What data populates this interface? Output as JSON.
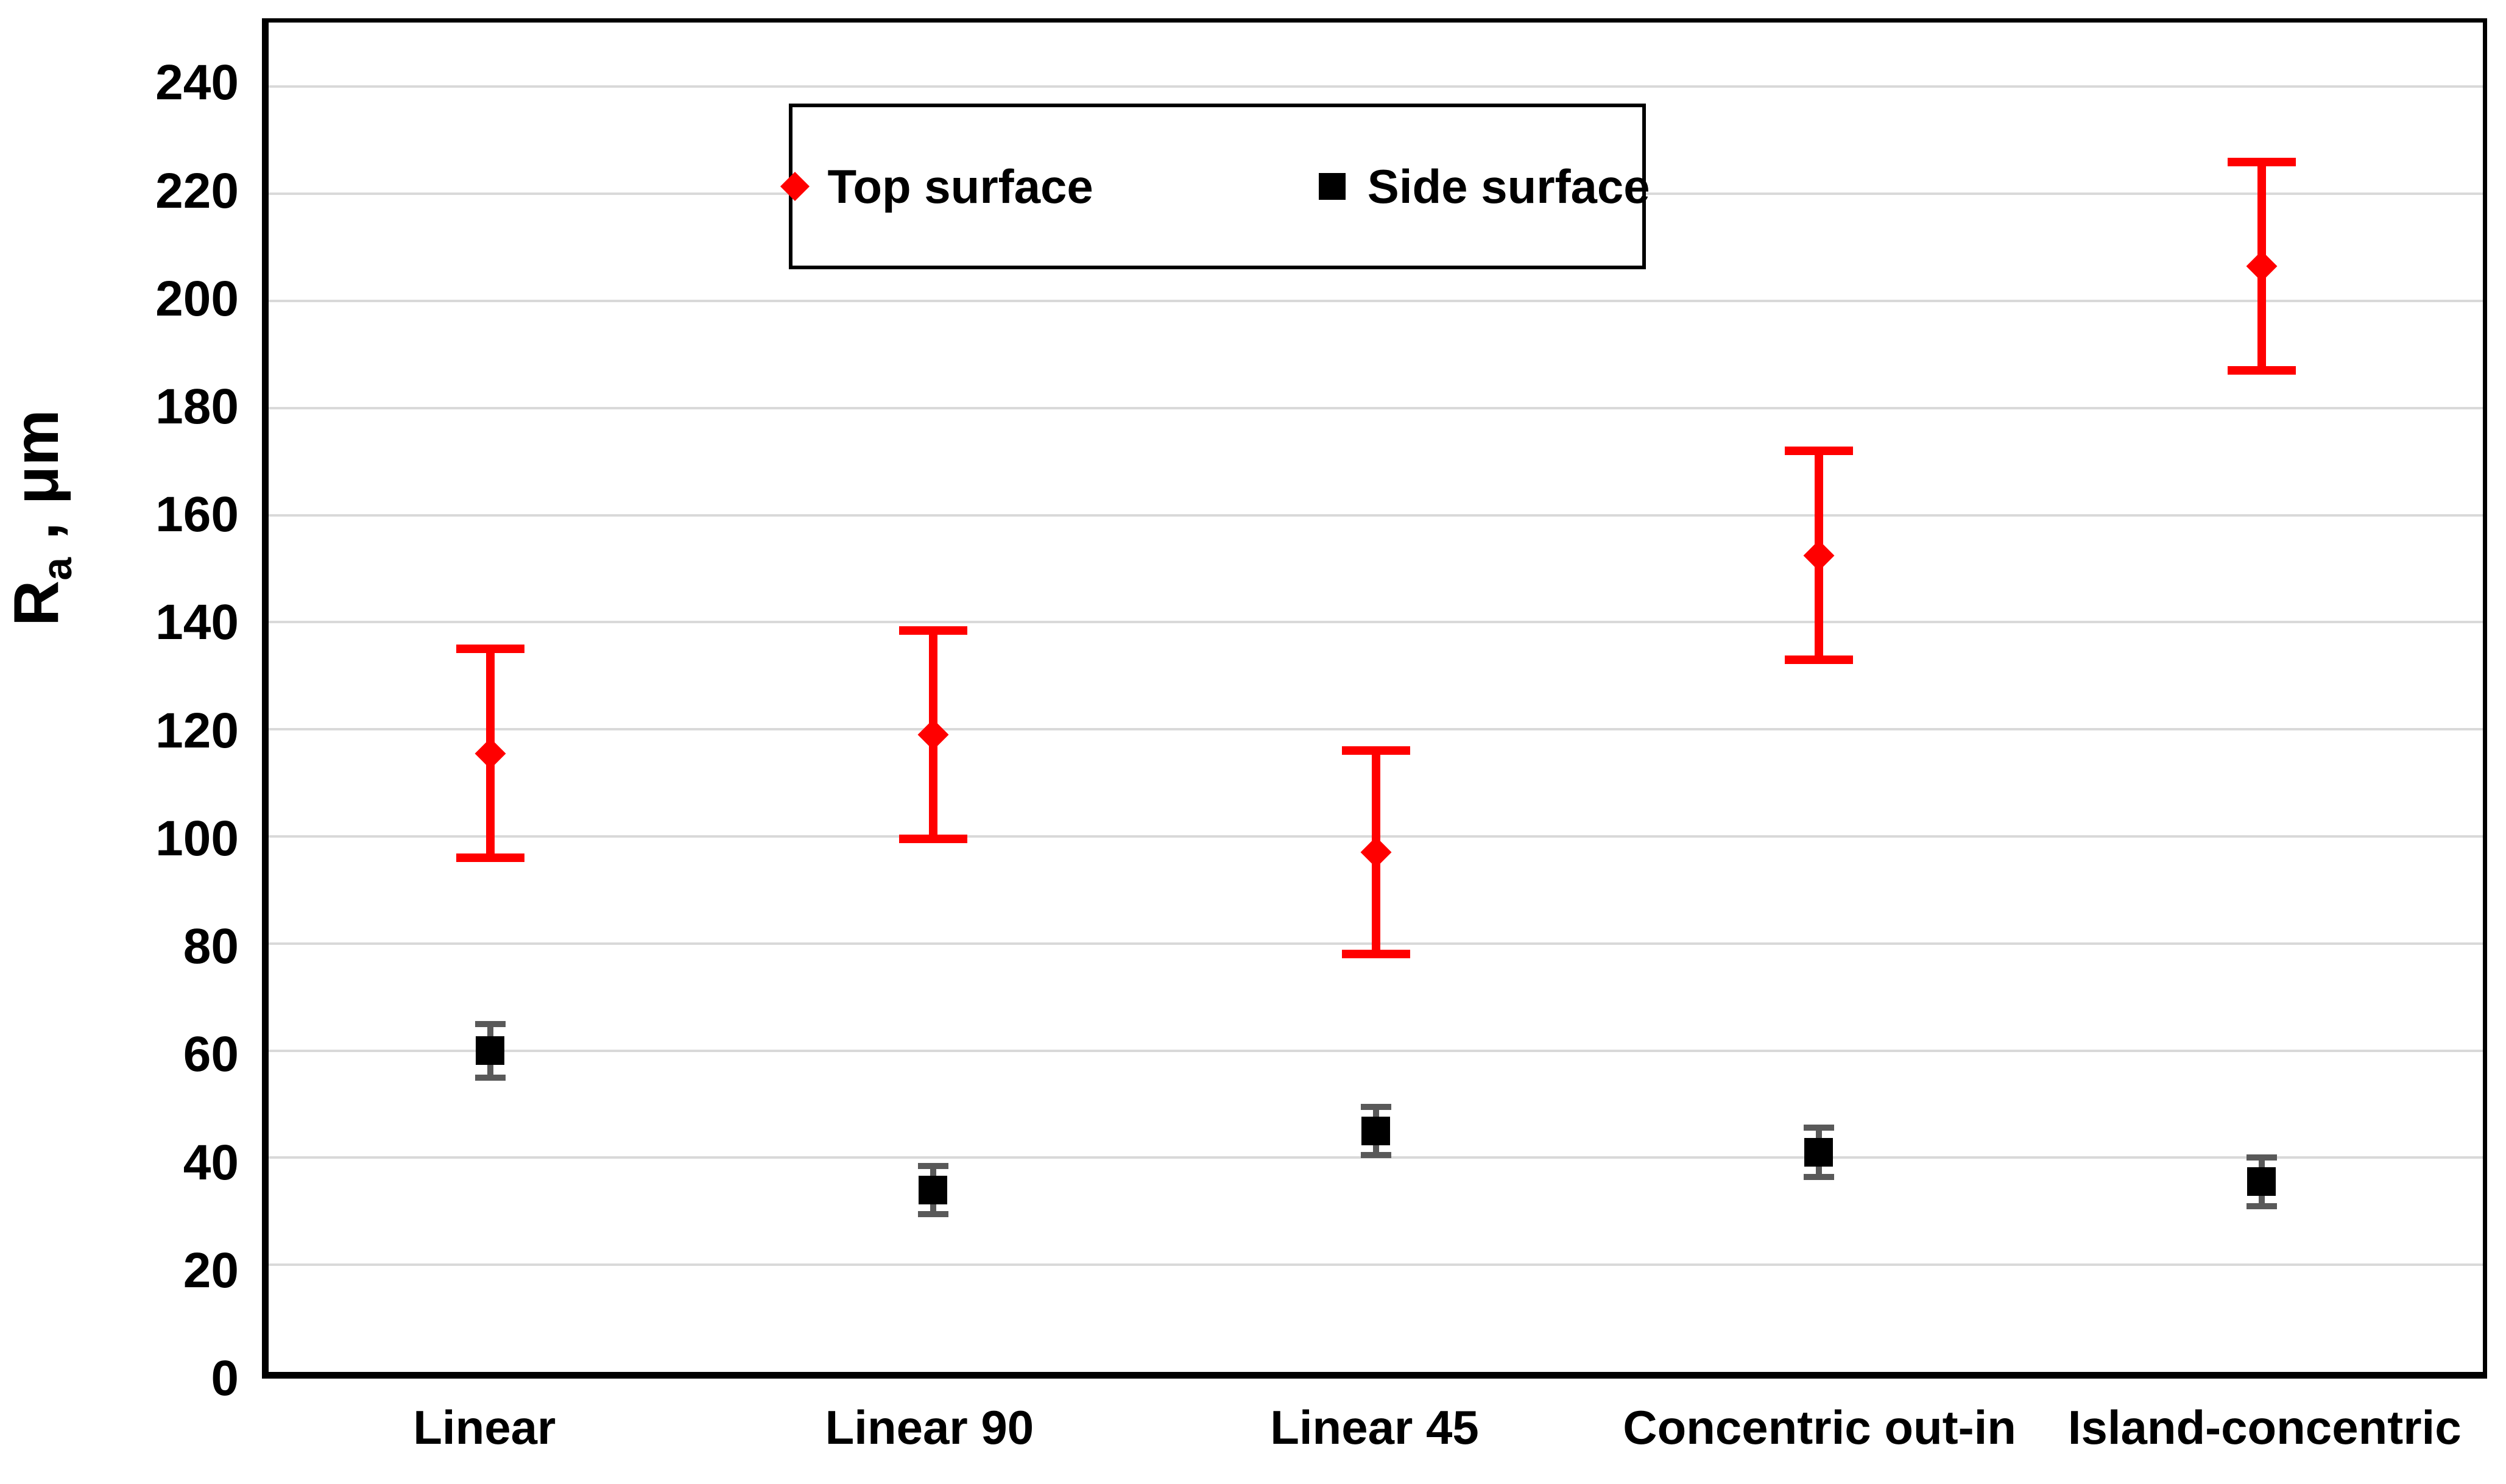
{
  "chart_data": {
    "type": "scatter",
    "title": "",
    "xlabel": "",
    "ylabel": "Ra , μm",
    "ylabel_parts": {
      "base": "R",
      "sub": "a",
      "rest": " , μm"
    },
    "categories": [
      "Linear",
      "Linear 90",
      "Linear 45",
      "Concentric out-in",
      "Island-concentric"
    ],
    "series": [
      {
        "name": "Top surface",
        "marker": "diamond",
        "color": "#FF0000",
        "whisker_color": "#FF0000",
        "values": [
          115.5,
          119,
          97,
          152.5,
          206.5
        ],
        "errors": [
          19.5,
          19.5,
          19,
          19.5,
          19.5
        ]
      },
      {
        "name": "Side surface",
        "marker": "square",
        "color": "#000000",
        "whisker_color": "#595959",
        "values": [
          60,
          34,
          45,
          41,
          35.5
        ],
        "errors": [
          5,
          4.5,
          4.5,
          4.6,
          4.5
        ]
      }
    ],
    "ylim": [
      0,
      252
    ],
    "yticks": [
      0,
      20,
      40,
      60,
      80,
      100,
      120,
      140,
      160,
      180,
      200,
      220,
      240
    ],
    "grid": true,
    "gridline_color": "#D9D9D9",
    "legend_position": "top-center-inside"
  }
}
